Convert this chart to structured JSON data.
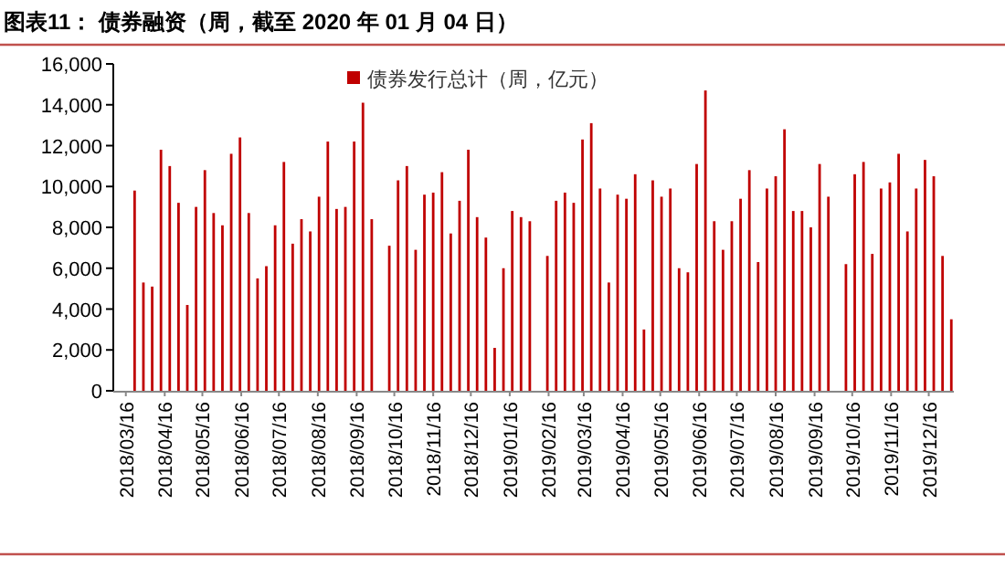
{
  "chart_data": {
    "type": "bar",
    "title": "图表11： 债券融资（周，截至 2020 年 01 月 04 日）",
    "x": [
      "2018-03-23",
      "2018-03-30",
      "2018-04-06",
      "2018-04-13",
      "2018-04-20",
      "2018-04-27",
      "2018-05-04",
      "2018-05-11",
      "2018-05-18",
      "2018-05-25",
      "2018-06-01",
      "2018-06-08",
      "2018-06-15",
      "2018-06-22",
      "2018-06-29",
      "2018-07-06",
      "2018-07-13",
      "2018-07-20",
      "2018-07-27",
      "2018-08-03",
      "2018-08-10",
      "2018-08-17",
      "2018-08-24",
      "2018-08-31",
      "2018-09-07",
      "2018-09-14",
      "2018-09-21",
      "2018-09-28",
      "2018-10-12",
      "2018-10-19",
      "2018-10-26",
      "2018-11-02",
      "2018-11-09",
      "2018-11-16",
      "2018-11-23",
      "2018-11-30",
      "2018-12-07",
      "2018-12-14",
      "2018-12-21",
      "2018-12-28",
      "2019-01-04",
      "2019-01-11",
      "2019-01-18",
      "2019-01-25",
      "2019-02-01",
      "2019-02-15",
      "2019-02-22",
      "2019-03-01",
      "2019-03-08",
      "2019-03-15",
      "2019-03-22",
      "2019-03-29",
      "2019-04-05",
      "2019-04-12",
      "2019-04-19",
      "2019-04-26",
      "2019-05-03",
      "2019-05-10",
      "2019-05-17",
      "2019-05-24",
      "2019-05-31",
      "2019-06-07",
      "2019-06-14",
      "2019-06-21",
      "2019-06-28",
      "2019-07-05",
      "2019-07-12",
      "2019-07-19",
      "2019-07-26",
      "2019-08-02",
      "2019-08-09",
      "2019-08-16",
      "2019-08-23",
      "2019-08-30",
      "2019-09-06",
      "2019-09-13",
      "2019-09-20",
      "2019-09-27",
      "2019-10-11",
      "2019-10-18",
      "2019-10-25",
      "2019-11-01",
      "2019-11-08",
      "2019-11-15",
      "2019-11-22",
      "2019-11-29",
      "2019-12-06",
      "2019-12-13",
      "2019-12-20",
      "2019-12-27",
      "2020-01-03"
    ],
    "series": [
      {
        "name": "债券发行总计（周，亿元）",
        "color": "#c00000",
        "values": [
          9800,
          5300,
          5100,
          11800,
          11000,
          9200,
          4200,
          9000,
          10800,
          8700,
          8100,
          11600,
          12400,
          8700,
          5500,
          6100,
          8100,
          11200,
          7200,
          8400,
          7800,
          9500,
          12200,
          8900,
          9000,
          12200,
          14100,
          8400,
          7100,
          10300,
          11000,
          6900,
          9600,
          9700,
          10700,
          7700,
          9300,
          11800,
          8500,
          7500,
          2100,
          6000,
          8800,
          8500,
          8300,
          6600,
          9300,
          9700,
          9200,
          12300,
          13100,
          9900,
          5300,
          9600,
          9400,
          10600,
          3000,
          10300,
          9500,
          9900,
          6000,
          5800,
          11100,
          14700,
          8300,
          6900,
          8300,
          9400,
          10800,
          6300,
          9900,
          10500,
          12800,
          8800,
          8800,
          8000,
          11100,
          9500,
          6200,
          10600,
          11200,
          6700,
          9900,
          10200,
          11600,
          7800,
          9900,
          11300,
          10500,
          6600,
          3500
        ]
      }
    ],
    "xlim": [
      "2018-03-06",
      "2020-01-05"
    ],
    "xticks": [
      {
        "value": "2018-03-16",
        "label": "2018/03/16"
      },
      {
        "value": "2018-04-16",
        "label": "2018/04/16"
      },
      {
        "value": "2018-05-16",
        "label": "2018/05/16"
      },
      {
        "value": "2018-06-16",
        "label": "2018/06/16"
      },
      {
        "value": "2018-07-16",
        "label": "2018/07/16"
      },
      {
        "value": "2018-08-16",
        "label": "2018/08/16"
      },
      {
        "value": "2018-09-16",
        "label": "2018/09/16"
      },
      {
        "value": "2018-10-16",
        "label": "2018/10/16"
      },
      {
        "value": "2018-11-16",
        "label": "2018/11/16"
      },
      {
        "value": "2018-12-16",
        "label": "2018/12/16"
      },
      {
        "value": "2019-01-16",
        "label": "2019/01/16"
      },
      {
        "value": "2019-02-16",
        "label": "2019/02/16"
      },
      {
        "value": "2019-03-16",
        "label": "2019/03/16"
      },
      {
        "value": "2019-04-16",
        "label": "2019/04/16"
      },
      {
        "value": "2019-05-16",
        "label": "2019/05/16"
      },
      {
        "value": "2019-06-16",
        "label": "2019/06/16"
      },
      {
        "value": "2019-07-16",
        "label": "2019/07/16"
      },
      {
        "value": "2019-08-16",
        "label": "2019/08/16"
      },
      {
        "value": "2019-09-16",
        "label": "2019/09/16"
      },
      {
        "value": "2019-10-16",
        "label": "2019/10/16"
      },
      {
        "value": "2019-11-16",
        "label": "2019/11/16"
      },
      {
        "value": "2019-12-16",
        "label": "2019/12/16"
      }
    ],
    "ylim": [
      0,
      16000
    ],
    "yticks": [
      {
        "value": 0,
        "label": "0"
      },
      {
        "value": 2000,
        "label": "2,000"
      },
      {
        "value": 4000,
        "label": "4,000"
      },
      {
        "value": 6000,
        "label": "6,000"
      },
      {
        "value": 8000,
        "label": "8,000"
      },
      {
        "value": 10000,
        "label": "10,000"
      },
      {
        "value": 12000,
        "label": "12,000"
      },
      {
        "value": 14000,
        "label": "14,000"
      },
      {
        "value": 16000,
        "label": "16,000"
      }
    ],
    "legend": "top"
  }
}
